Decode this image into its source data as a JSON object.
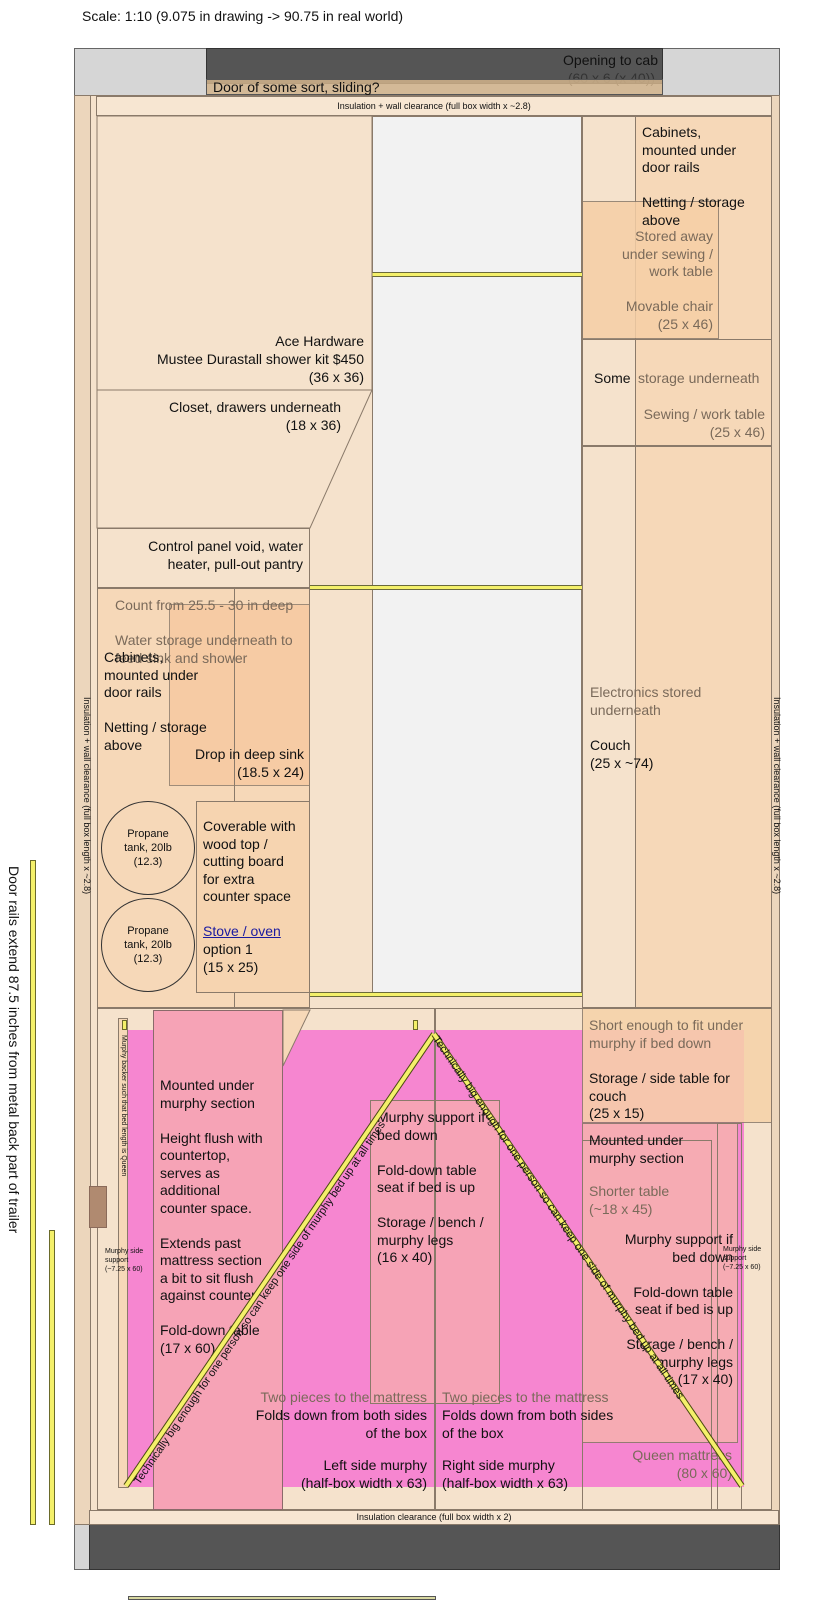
{
  "scale_note": "Scale: 1:10 (9.075 in drawing -> 90.75 in real world)",
  "cab": {
    "opening_title": "Opening to cab",
    "opening_dims": "(60 x 6 (x 40))",
    "door_label": "Door of some sort, sliding?"
  },
  "clearances": {
    "top": "Insulation + wall clearance (full box width x ~2.8)",
    "bottom": "Insulation clearance (full box width x 2)",
    "left": "Insulation + wall clearance (full box length x ~2.8)",
    "right": "Insulation + wall clearance (full box length x ~2.8)"
  },
  "door_rails_note": "Door rails extend 87.5 inches from metal back part of trailer",
  "left_column": {
    "shower": "Ace Hardware\nMustee Durastall shower kit $450\n(36 x 36)",
    "closet": "Closet, drawers underneath\n(18 x 36)",
    "control_panel": "Control panel void, water\nheater, pull-out pantry",
    "counter": "Count from 25.5 - 30 in deep",
    "water_storage": "Water storage underneath to\nfeed sink and shower",
    "cabinets": "Cabinets,\nmounted under\ndoor rails\n\nNetting / storage\nabove",
    "sink": "Drop in deep sink\n(18.5 x 24)",
    "propane_1": "Propane\ntank, 20lb\n(12.3)",
    "propane_2": "Propane\ntank, 20lb\n(12.3)",
    "coverable": "Coverable with\nwood top /\ncutting board\nfor extra\ncounter space",
    "stove_link": "Stove / oven",
    "stove_option": "option 1\n(15 x 25)"
  },
  "right_column": {
    "cabinets": "Cabinets,\nmounted under\ndoor rails\n\nNetting / storage\nabove",
    "chair": "Stored away\nunder sewing /\nwork table\n\nMovable chair\n(25 x 46)",
    "some_storage_a": "Some",
    "some_storage_b": "storage underneath",
    "sewing_table": "Sewing / work table\n(25 x 46)",
    "electronics_a": "Electronics stored\nunderneath",
    "couch": "Couch\n(25 x ~74)",
    "side_table_a": "Short enough to fit under\nmurphy if bed down",
    "side_table_b": "Storage / side table for\ncouch\n(25 x 15)",
    "mounted_under": "Mounted under\nmurphy section",
    "shorter_table": "Shorter table\n(~18 x 45)",
    "murphy_support": "Murphy support if\nbed down\n\nFold-down table\nseat if bed is up\n\nStorage / bench /\nmurphy legs\n(17 x 40)",
    "murphy_side": "Murphy side\nsupport\n(~7.25 x 60)",
    "queen": "Queen mattress\n(80 x 60)"
  },
  "bottom_section": {
    "left_table": "Mounted under\nmurphy section\n\nHeight flush with\ncountertop,\nserves as\nadditional\ncounter space.\n\nExtends past\nmattress section\na bit to sit flush\nagainst counter\n\nFold-down table\n(17 x 60)",
    "left_murphy_side": "Murphy side\nsupport\n(~7.25 x 60)",
    "murphy_backer": "Murphy backer such that bed length is Queen",
    "center_support": "Murphy support if\nbed down\n\nFold-down table\nseat if bed is up\n\nStorage / bench /\nmurphy legs\n(16 x 40)",
    "left_pieces_faded": "Two pieces to the mattress",
    "left_pieces": "Folds down from both sides\nof the box",
    "left_murphy": "Left side murphy\n(half-box width x 63)",
    "right_pieces_faded": "Two pieces to the mattress",
    "right_pieces": "Folds down from both sides\nof the box",
    "right_murphy": "Right side murphy\n(half-box width x 63)",
    "diag_left": "Technically big enough for one person so can keep one side of murphy bed up at all times",
    "diag_right": "Technically big enough for one person so can keep one side of murphy bed up at all times"
  },
  "colors": {
    "wood_light": "#f5e2cc",
    "wood_mid": "#f5d6b3",
    "peach": "#f8cfa6",
    "magenta": "#f686d0",
    "pink": "#f6a3b6",
    "rail_yellow": "#f4f06a",
    "cab_gray": "#555555",
    "frame_gray": "#d0d0d0"
  }
}
